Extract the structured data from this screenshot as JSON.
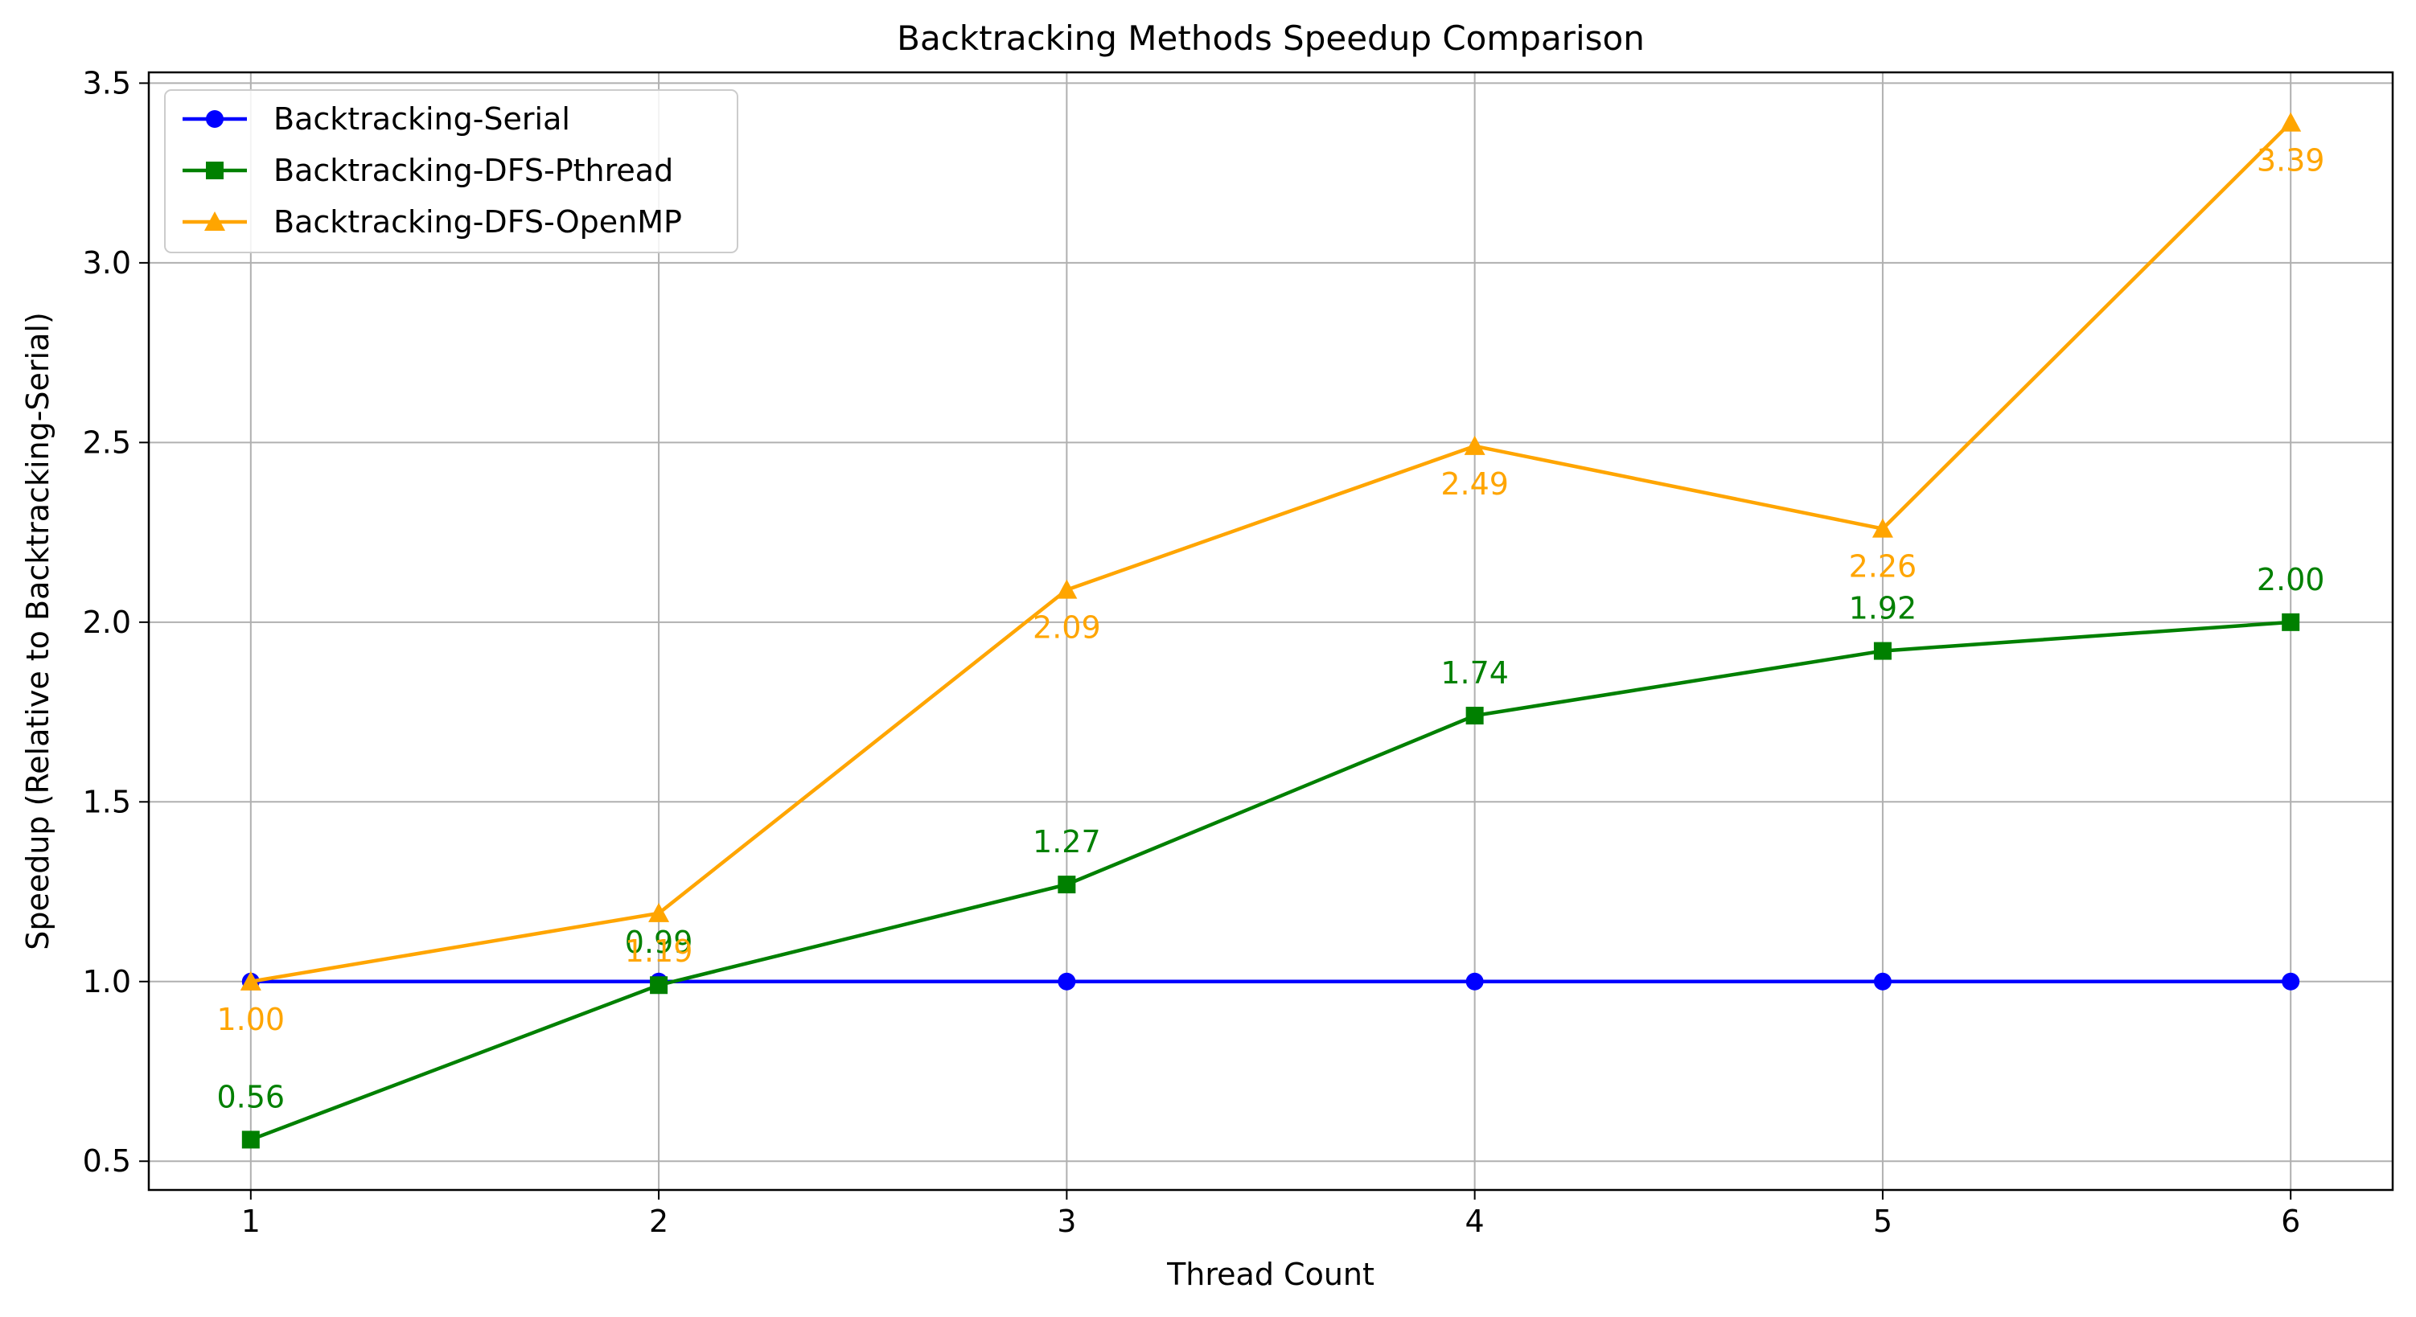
{
  "chart_data": {
    "type": "line",
    "title": "Backtracking Methods Speedup Comparison",
    "xlabel": "Thread Count",
    "ylabel": "Speedup (Relative to Backtracking-Serial)",
    "x": [
      1,
      2,
      3,
      4,
      5,
      6
    ],
    "x_ticks": [
      "1",
      "2",
      "3",
      "4",
      "5",
      "6"
    ],
    "y_ticks": [
      "0.5",
      "1.0",
      "1.5",
      "2.0",
      "2.5",
      "3.0",
      "3.5"
    ],
    "y_tick_values": [
      0.5,
      1.0,
      1.5,
      2.0,
      2.5,
      3.0,
      3.5
    ],
    "xlim": [
      0.75,
      6.25
    ],
    "ylim": [
      0.42,
      3.53
    ],
    "grid": true,
    "legend_position": "top-left",
    "series": [
      {
        "name": "Backtracking-Serial",
        "color": "#0000ff",
        "marker": "circle",
        "values": [
          1.0,
          1.0,
          1.0,
          1.0,
          1.0,
          1.0
        ],
        "labels": []
      },
      {
        "name": "Backtracking-DFS-Pthread",
        "color": "#008000",
        "marker": "square",
        "values": [
          0.56,
          0.99,
          1.27,
          1.74,
          1.92,
          2.0
        ],
        "labels": [
          "0.56",
          "0.99",
          "1.27",
          "1.74",
          "1.92",
          "2.00"
        ],
        "label_side": "above"
      },
      {
        "name": "Backtracking-DFS-OpenMP",
        "color": "#ffa500",
        "marker": "triangle",
        "values": [
          1.0,
          1.19,
          2.09,
          2.49,
          2.26,
          3.39
        ],
        "labels": [
          "1.00",
          "1.19",
          "2.09",
          "2.49",
          "2.26",
          "3.39"
        ],
        "label_side": "below"
      }
    ]
  }
}
